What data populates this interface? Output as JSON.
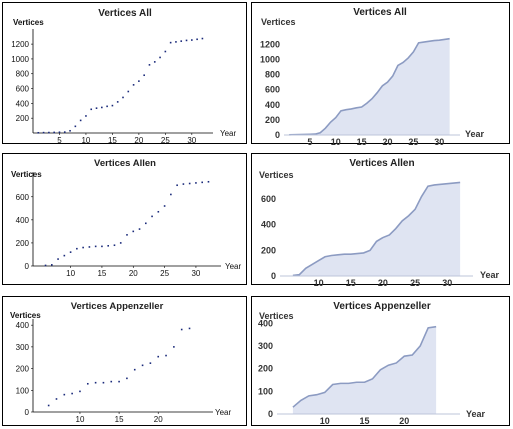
{
  "chart_data": [
    {
      "type": "scatter",
      "title": "Vertices All",
      "xlabel": "Year",
      "ylabel": "Vertices",
      "xlim": [
        0,
        34
      ],
      "ylim": [
        0,
        1350
      ],
      "xticks": [
        5,
        10,
        15,
        20,
        25,
        30
      ],
      "yticks": [
        200,
        400,
        600,
        800,
        1000,
        1200
      ],
      "x": [
        1,
        2,
        3,
        4,
        5,
        6,
        7,
        8,
        9,
        10,
        11,
        12,
        13,
        14,
        15,
        16,
        17,
        18,
        19,
        20,
        21,
        22,
        23,
        24,
        25,
        26,
        27,
        28,
        29,
        30,
        31,
        32
      ],
      "values": [
        3,
        5,
        6,
        8,
        10,
        12,
        30,
        90,
        170,
        230,
        320,
        335,
        345,
        360,
        370,
        420,
        480,
        560,
        650,
        700,
        780,
        920,
        960,
        1020,
        1100,
        1220,
        1230,
        1240,
        1250,
        1255,
        1265,
        1275
      ]
    },
    {
      "type": "area",
      "title": "Vertices All",
      "xlabel": "Year",
      "ylabel": "Vertices",
      "xlim": [
        0,
        34
      ],
      "ylim": [
        0,
        1350
      ],
      "xticks": [
        5,
        10,
        15,
        20,
        25,
        30
      ],
      "yticks": [
        0,
        200,
        400,
        600,
        800,
        1000,
        1200
      ],
      "x": [
        1,
        2,
        3,
        4,
        5,
        6,
        7,
        8,
        9,
        10,
        11,
        12,
        13,
        14,
        15,
        16,
        17,
        18,
        19,
        20,
        21,
        22,
        23,
        24,
        25,
        26,
        27,
        28,
        29,
        30,
        31,
        32
      ],
      "values": [
        3,
        5,
        6,
        8,
        10,
        12,
        30,
        90,
        170,
        230,
        320,
        335,
        345,
        360,
        370,
        420,
        480,
        560,
        650,
        700,
        780,
        920,
        960,
        1020,
        1100,
        1220,
        1230,
        1240,
        1250,
        1255,
        1265,
        1275
      ]
    },
    {
      "type": "scatter",
      "title": "Vertices Allen",
      "xlabel": "Year",
      "ylabel": "Vertices",
      "xlim": [
        4,
        34
      ],
      "ylim": [
        0,
        780
      ],
      "xticks": [
        10,
        15,
        20,
        25,
        30
      ],
      "yticks": [
        0,
        200,
        400,
        600
      ],
      "x": [
        6,
        7,
        8,
        9,
        10,
        11,
        12,
        13,
        14,
        15,
        16,
        17,
        18,
        19,
        20,
        21,
        22,
        23,
        24,
        25,
        26,
        27,
        28,
        29,
        30,
        31,
        32
      ],
      "values": [
        5,
        10,
        60,
        90,
        120,
        150,
        160,
        165,
        170,
        170,
        175,
        180,
        200,
        270,
        300,
        320,
        370,
        430,
        470,
        520,
        620,
        700,
        710,
        715,
        720,
        725,
        730
      ]
    },
    {
      "type": "area",
      "title": "Vertices Allen",
      "xlabel": "Year",
      "ylabel": "Vertices",
      "xlim": [
        4,
        34
      ],
      "ylim": [
        0,
        780
      ],
      "xticks": [
        10,
        15,
        20,
        25,
        30
      ],
      "yticks": [
        0,
        200,
        400,
        600
      ],
      "x": [
        6,
        7,
        8,
        9,
        10,
        11,
        12,
        13,
        14,
        15,
        16,
        17,
        18,
        19,
        20,
        21,
        22,
        23,
        24,
        25,
        26,
        27,
        28,
        29,
        30,
        31,
        32
      ],
      "values": [
        5,
        10,
        60,
        90,
        120,
        150,
        160,
        165,
        170,
        170,
        175,
        180,
        200,
        270,
        300,
        320,
        370,
        430,
        470,
        520,
        620,
        700,
        710,
        715,
        720,
        725,
        730
      ]
    },
    {
      "type": "scatter",
      "title": "Vertices Appenzeller",
      "xlabel": "Year",
      "ylabel": "Vertices",
      "xlim": [
        4,
        27
      ],
      "ylim": [
        0,
        410
      ],
      "xticks": [
        10,
        15,
        20
      ],
      "yticks": [
        0,
        100,
        200,
        300,
        400
      ],
      "x": [
        6,
        7,
        8,
        9,
        10,
        11,
        12,
        13,
        14,
        15,
        16,
        17,
        18,
        19,
        20,
        21,
        22,
        23,
        24
      ],
      "values": [
        30,
        60,
        80,
        85,
        95,
        130,
        135,
        135,
        140,
        140,
        155,
        195,
        215,
        225,
        255,
        260,
        300,
        380,
        385
      ]
    },
    {
      "type": "area",
      "title": "Vertices Appenzeller",
      "xlabel": "Year",
      "ylabel": "Vertices",
      "xlim": [
        4,
        27
      ],
      "ylim": [
        0,
        410
      ],
      "xticks": [
        10,
        15,
        20
      ],
      "yticks": [
        0,
        100,
        200,
        300,
        400
      ],
      "x": [
        6,
        7,
        8,
        9,
        10,
        11,
        12,
        13,
        14,
        15,
        16,
        17,
        18,
        19,
        20,
        21,
        22,
        23,
        24
      ],
      "values": [
        30,
        60,
        80,
        85,
        95,
        130,
        135,
        135,
        140,
        140,
        155,
        195,
        215,
        225,
        255,
        260,
        300,
        380,
        385
      ]
    }
  ]
}
